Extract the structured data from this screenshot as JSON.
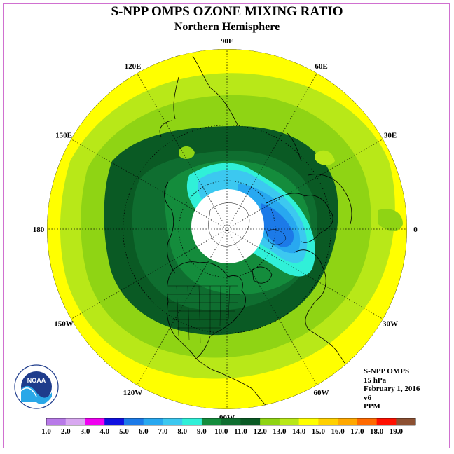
{
  "header": {
    "title": "S-NPP OMPS OZONE MIXING RATIO",
    "subtitle": "Northern Hemisphere"
  },
  "map": {
    "projection": "north-polar-stereographic",
    "longitude_labels": [
      {
        "text": "90E",
        "lon": 90
      },
      {
        "text": "60E",
        "lon": 60
      },
      {
        "text": "30E",
        "lon": 30
      },
      {
        "text": "0",
        "lon": 0
      },
      {
        "text": "30W",
        "lon": -30
      },
      {
        "text": "60W",
        "lon": -60
      },
      {
        "text": "90W",
        "lon": -90
      },
      {
        "text": "120W",
        "lon": -120
      },
      {
        "text": "150W",
        "lon": -150
      },
      {
        "text": "180",
        "lon": 180
      },
      {
        "text": "150E",
        "lon": 150
      },
      {
        "text": "120E",
        "lon": 120
      }
    ],
    "latitude_circles": [
      30,
      60
    ],
    "no_data_region": "polar night (white disk around pole)"
  },
  "info": {
    "instrument": "S-NPP OMPS",
    "level": "15 hPa",
    "date": "February 1, 2016",
    "version": "v6",
    "units": "PPM"
  },
  "colorbar": {
    "ticks": [
      "1.0",
      "2.0",
      "3.0",
      "4.0",
      "5.0",
      "6.0",
      "7.0",
      "8.0",
      "9.0",
      "10.0",
      "11.0",
      "12.0",
      "13.0",
      "14.0",
      "15.0",
      "16.0",
      "17.0",
      "18.0",
      "19.0"
    ],
    "colors": [
      "#b87ae8",
      "#d8a8f0",
      "#f000f0",
      "#1010e0",
      "#1c7ae8",
      "#28a8f0",
      "#3cc8f0",
      "#30f0d8",
      "#148c3c",
      "#0f6e30",
      "#0a5a24",
      "#8fd414",
      "#b8e818",
      "#ffff00",
      "#ffd000",
      "#ffa800",
      "#ff6a00",
      "#ff1000",
      "#8c5032"
    ]
  },
  "logo": {
    "text": "NOAA",
    "ring_text": "NATIONAL OCEANIC AND ATMOSPHERIC ADMINISTRATION · U.S. DEPARTMENT OF COMMERCE"
  }
}
